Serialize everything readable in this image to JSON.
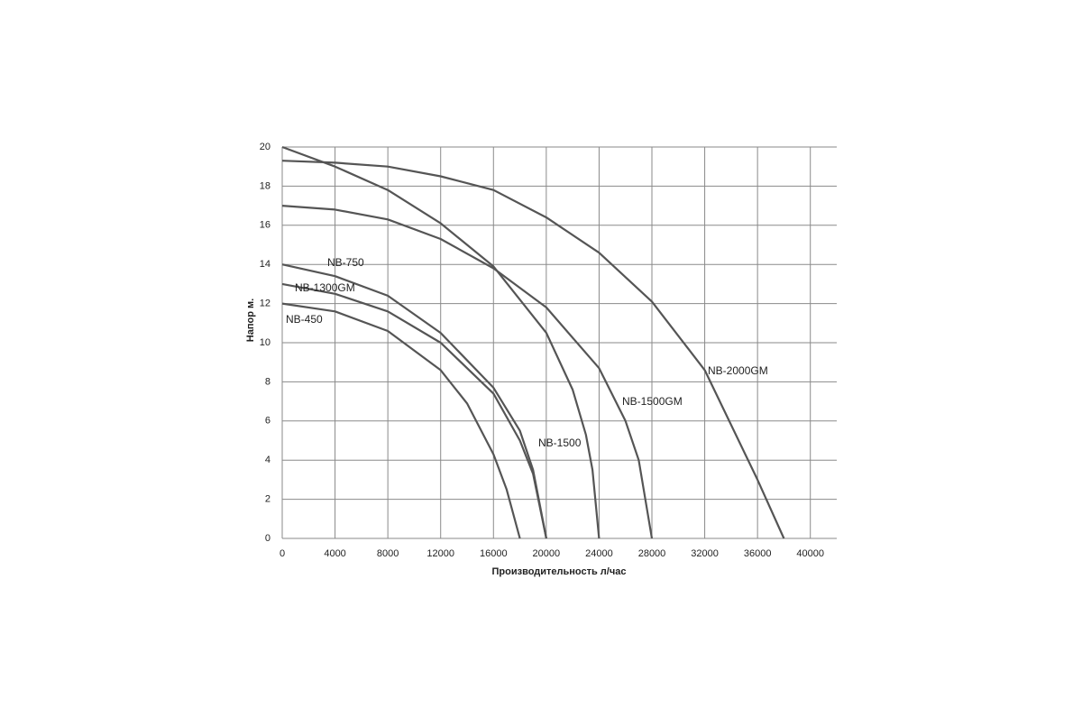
{
  "chart_data": {
    "type": "line",
    "x_label": "Производительность  л/час",
    "y_label": "Напор м.",
    "xlim": [
      0,
      42000
    ],
    "ylim": [
      0,
      20
    ],
    "xticks": [
      0,
      4000,
      8000,
      12000,
      16000,
      20000,
      24000,
      28000,
      32000,
      36000,
      40000
    ],
    "yticks": [
      0,
      2,
      4,
      6,
      8,
      10,
      12,
      14,
      16,
      18,
      20
    ],
    "grid": true,
    "series": [
      {
        "name": "NB-2000GM",
        "color": "#555555",
        "x": [
          0,
          4000,
          8000,
          12000,
          16000,
          20000,
          24000,
          28000,
          32000,
          36000,
          38000
        ],
        "values": [
          19.3,
          19.2,
          19.0,
          18.5,
          17.8,
          16.4,
          14.6,
          12.1,
          8.6,
          3.0,
          0
        ]
      },
      {
        "name": "NB-1500",
        "color": "#555555",
        "x": [
          0,
          4000,
          8000,
          12000,
          16000,
          20000,
          22000,
          23000,
          23500,
          24000
        ],
        "values": [
          20,
          19.0,
          17.8,
          16.1,
          13.9,
          10.5,
          7.6,
          5.3,
          3.5,
          0
        ]
      },
      {
        "name": "NB-1500GM",
        "color": "#555555",
        "x": [
          0,
          4000,
          8000,
          12000,
          16000,
          20000,
          24000,
          26000,
          27000,
          28000
        ],
        "values": [
          17,
          16.8,
          16.3,
          15.3,
          13.8,
          11.8,
          8.7,
          6.0,
          4.0,
          0
        ]
      },
      {
        "name": "NB-750",
        "color": "#555555",
        "x": [
          0,
          4000,
          8000,
          12000,
          16000,
          18000,
          19000,
          20000
        ],
        "values": [
          14,
          13.4,
          12.4,
          10.5,
          7.7,
          5.5,
          3.5,
          0
        ]
      },
      {
        "name": "NB-1300GM",
        "color": "#555555",
        "x": [
          0,
          4000,
          8000,
          12000,
          16000,
          18000,
          19000,
          20000
        ],
        "values": [
          13,
          12.5,
          11.6,
          10.0,
          7.4,
          5.0,
          3.3,
          0
        ]
      },
      {
        "name": "NB-450",
        "color": "#555555",
        "x": [
          0,
          4000,
          8000,
          12000,
          14000,
          16000,
          17000,
          18000
        ],
        "values": [
          12,
          11.6,
          10.6,
          8.6,
          6.9,
          4.3,
          2.5,
          0
        ]
      }
    ]
  }
}
